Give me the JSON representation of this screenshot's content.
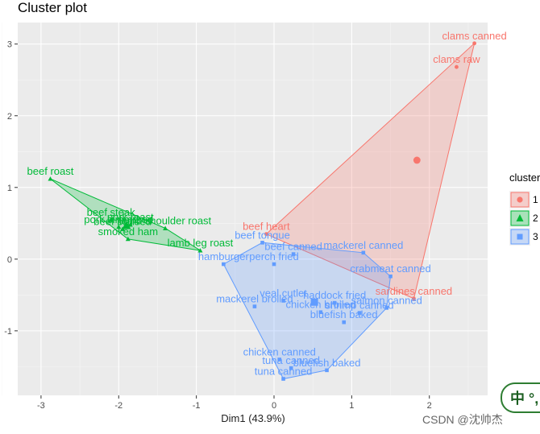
{
  "chart_data": {
    "type": "scatter",
    "title": "Cluster plot",
    "xlabel": "Dim1 (43.9%)",
    "ylabel": "",
    "xlim": [
      -3.3,
      2.75
    ],
    "ylim": [
      -1.9,
      3.3
    ],
    "x_ticks": [
      -3,
      -2,
      -1,
      0,
      1,
      2
    ],
    "y_ticks": [
      -1,
      0,
      1,
      2,
      3
    ],
    "grid": true,
    "legend_title": "cluster",
    "legend_position": "right",
    "clusters": [
      {
        "name": "1",
        "color": "#F8766D",
        "marker": "circle",
        "center": [
          1.84,
          1.38
        ],
        "points": [
          {
            "label": "clams canned",
            "x": 2.58,
            "y": 3.01
          },
          {
            "label": "clams raw",
            "x": 2.35,
            "y": 2.68
          },
          {
            "label": "beef heart",
            "x": -0.1,
            "y": 0.35
          },
          {
            "label": "sardines canned",
            "x": 1.8,
            "y": -0.55
          }
        ]
      },
      {
        "name": "2",
        "color": "#00BA38",
        "marker": "triangle",
        "center": [
          -1.9,
          0.47
        ],
        "points": [
          {
            "label": "beef roast",
            "x": -2.88,
            "y": 1.12
          },
          {
            "label": "beef steak",
            "x": -2.1,
            "y": 0.55
          },
          {
            "label": "pork roast",
            "x": -1.85,
            "y": 0.48
          },
          {
            "label": "pork simmered",
            "x": -2.0,
            "y": 0.45
          },
          {
            "label": "lamb shoulder roast",
            "x": -1.4,
            "y": 0.43
          },
          {
            "label": "beef braised",
            "x": -1.95,
            "y": 0.42
          },
          {
            "label": "smoked ham",
            "x": -1.88,
            "y": 0.28
          },
          {
            "label": "lamb leg roast",
            "x": -0.95,
            "y": 0.12
          }
        ]
      },
      {
        "name": "3",
        "color": "#619CFF",
        "marker": "square",
        "center": [
          0.52,
          -0.6
        ],
        "points": [
          {
            "label": "beef tongue",
            "x": -0.15,
            "y": 0.23
          },
          {
            "label": "beef canned",
            "x": 0.25,
            "y": 0.07
          },
          {
            "label": "mackerel canned",
            "x": 1.15,
            "y": 0.09
          },
          {
            "label": "hamburger",
            "x": -0.65,
            "y": -0.07
          },
          {
            "label": "perch fried",
            "x": 0.0,
            "y": -0.07
          },
          {
            "label": "crabmeat canned",
            "x": 1.5,
            "y": -0.24
          },
          {
            "label": "veal cutlet",
            "x": 0.12,
            "y": -0.58
          },
          {
            "label": "haddock fried",
            "x": 0.78,
            "y": -0.61
          },
          {
            "label": "mackerel broiled",
            "x": -0.25,
            "y": -0.66
          },
          {
            "label": "salmon canned",
            "x": 1.45,
            "y": -0.68
          },
          {
            "label": "chicken broiled",
            "x": 0.6,
            "y": -0.74
          },
          {
            "label": "shrimp canned",
            "x": 1.1,
            "y": -0.75
          },
          {
            "label": "bluefish baked",
            "x": 0.9,
            "y": -0.88
          },
          {
            "label": "chicken canned",
            "x": 0.07,
            "y": -1.4
          },
          {
            "label": "tuna canned",
            "x": 0.22,
            "y": -1.52
          },
          {
            "label": "bluefish baked",
            "x": 0.68,
            "y": -1.55
          },
          {
            "label": "tuna canned",
            "x": 0.12,
            "y": -1.67
          }
        ],
        "hull_order": [
          3,
          0,
          2,
          5,
          9,
          15,
          16,
          8
        ]
      }
    ]
  },
  "watermark": "CSDN @沈帅杰",
  "ime_badge": "中 °,"
}
